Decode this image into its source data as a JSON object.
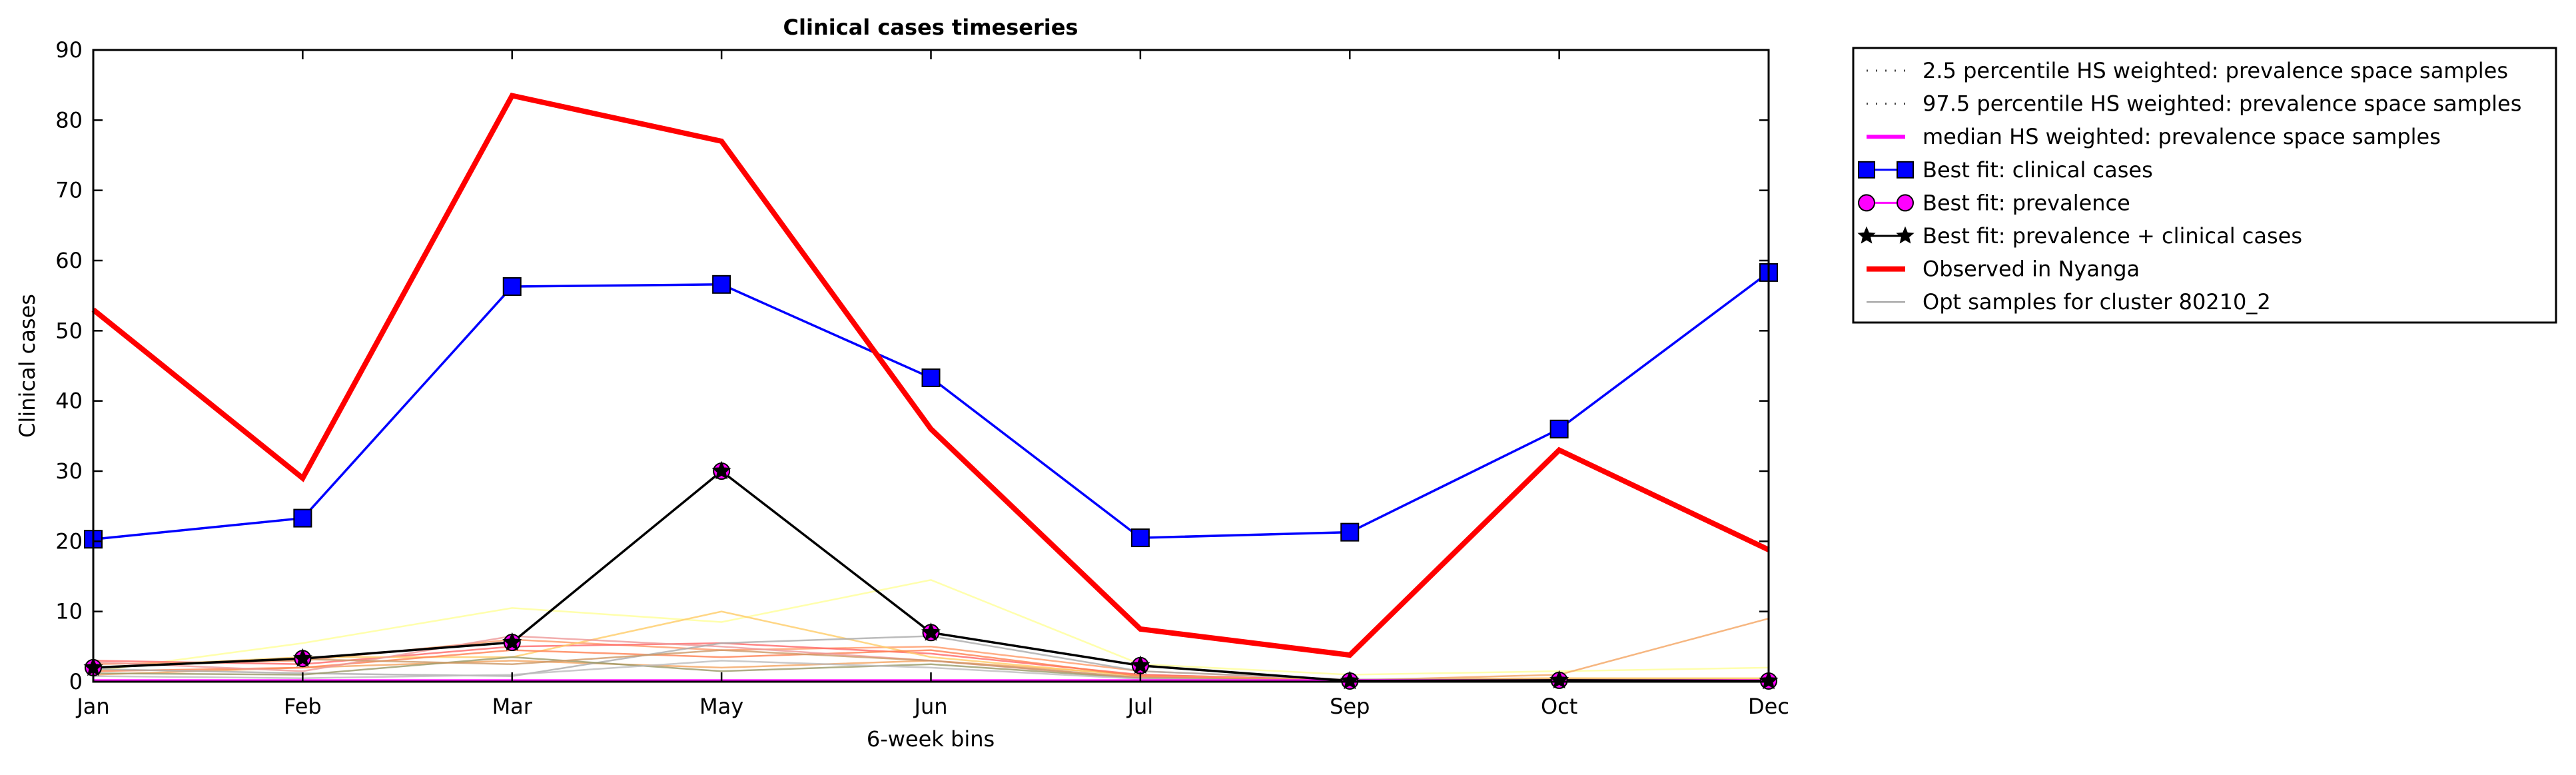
{
  "chart_data": {
    "type": "line",
    "title": "Clinical cases timeseries",
    "xlabel": "6-week bins",
    "ylabel": "Clinical cases",
    "xlim": [
      0,
      8
    ],
    "ylim": [
      0,
      90
    ],
    "grid": false,
    "legend_placement": "outside top-right",
    "x_ticks": [
      {
        "x": 0,
        "label": "Jan"
      },
      {
        "x": 1,
        "label": "Feb"
      },
      {
        "x": 2,
        "label": "Mar"
      },
      {
        "x": 3,
        "label": "May"
      },
      {
        "x": 4,
        "label": "Jun"
      },
      {
        "x": 5,
        "label": "Jul"
      },
      {
        "x": 6,
        "label": "Sep"
      },
      {
        "x": 7,
        "label": "Oct"
      },
      {
        "x": 8,
        "label": "Dec"
      }
    ],
    "y_ticks": [
      {
        "y": 0,
        "label": "0"
      },
      {
        "y": 10,
        "label": "10"
      },
      {
        "y": 20,
        "label": "20"
      },
      {
        "y": 30,
        "label": "30"
      },
      {
        "y": 40,
        "label": "40"
      },
      {
        "y": 50,
        "label": "50"
      },
      {
        "y": 60,
        "label": "60"
      },
      {
        "y": 70,
        "label": "70"
      },
      {
        "y": 80,
        "label": "80"
      },
      {
        "y": 90,
        "label": "90"
      }
    ],
    "background_samples": [
      {
        "color": "#ffff99",
        "values": [
          1.5,
          5.5,
          10.5,
          8.5,
          14.5,
          2.5,
          1.0,
          1.5,
          2.0
        ]
      },
      {
        "color": "#f4a460",
        "values": [
          1.0,
          2.0,
          3.0,
          2.0,
          3.0,
          1.0,
          0.2,
          1.0,
          9.0
        ]
      },
      {
        "color": "#ff9966",
        "values": [
          2.5,
          3.0,
          6.0,
          4.5,
          5.0,
          1.5,
          0.3,
          0.5,
          0.3
        ]
      },
      {
        "color": "#ff6666",
        "values": [
          3.0,
          2.5,
          5.0,
          5.5,
          4.0,
          1.0,
          0.2,
          0.3,
          0.2
        ]
      },
      {
        "color": "#ffcc66",
        "values": [
          2.0,
          3.5,
          3.5,
          10.0,
          3.5,
          0.8,
          0.2,
          0.5,
          0.5
        ]
      },
      {
        "color": "#ff7f50",
        "values": [
          1.5,
          2.0,
          4.5,
          3.5,
          4.5,
          0.8,
          0.1,
          0.2,
          0.2
        ]
      },
      {
        "color": "#ee9999",
        "values": [
          2.8,
          1.5,
          6.5,
          5.0,
          3.0,
          0.5,
          0.1,
          0.2,
          0.1
        ]
      },
      {
        "color": "#aaaaaa",
        "values": [
          1.8,
          1.2,
          0.8,
          5.5,
          6.5,
          1.5,
          0.3,
          0.3,
          0.2
        ]
      },
      {
        "color": "#999966",
        "values": [
          1.2,
          1.0,
          3.5,
          1.5,
          2.5,
          0.5,
          0.1,
          0.2,
          0.1
        ]
      },
      {
        "color": "#cc9966",
        "values": [
          2.0,
          3.2,
          2.5,
          4.5,
          3.0,
          0.6,
          0.2,
          0.3,
          0.2
        ]
      },
      {
        "color": "#bbbbbb",
        "values": [
          0.8,
          0.5,
          1.0,
          3.0,
          2.0,
          0.4,
          0.1,
          0.1,
          0.1
        ]
      }
    ],
    "series": [
      {
        "name": "2.5 percentile HS weighted: prevalence space samples",
        "style": "dotted",
        "color": "#444444",
        "values": [
          0.1,
          0.1,
          0.1,
          0.1,
          0.1,
          0.1,
          0.1,
          0.1,
          0.1
        ]
      },
      {
        "name": "97.5 percentile HS weighted: prevalence space samples",
        "style": "dotted",
        "color": "#444444",
        "values": [
          0.2,
          0.2,
          0.2,
          0.2,
          0.2,
          0.2,
          0.2,
          0.2,
          0.2
        ]
      },
      {
        "name": "median HS weighted: prevalence space samples",
        "style": "solid",
        "color": "#ff00ff",
        "values": [
          0.1,
          0.1,
          0.1,
          0.1,
          0.1,
          0.1,
          0.1,
          0.1,
          0.1
        ]
      },
      {
        "name": "Best fit: clinical cases",
        "style": "line-square",
        "color": "#0000ff",
        "values": [
          20.3,
          23.3,
          56.3,
          56.6,
          43.3,
          20.5,
          21.3,
          36.0,
          58.3
        ]
      },
      {
        "name": "Best fit: prevalence",
        "style": "line-circle",
        "color": "#ff00ff",
        "values": [
          2.0,
          3.3,
          5.6,
          30.0,
          7.0,
          2.3,
          0.1,
          0.2,
          0.1
        ]
      },
      {
        "name": "Best fit: prevalence + clinical cases",
        "style": "line-star",
        "color": "#000000",
        "values": [
          2.0,
          3.3,
          5.6,
          30.0,
          7.0,
          2.3,
          0.1,
          0.2,
          0.1
        ]
      },
      {
        "name": "Observed in Nyanga",
        "style": "thick",
        "color": "#ff0000",
        "values": [
          53.0,
          29.0,
          83.5,
          77.0,
          36.0,
          7.5,
          3.8,
          33.0,
          18.8
        ]
      },
      {
        "name": "Opt samples for cluster 80210_2",
        "style": "thin",
        "color": "#aaaaaa"
      }
    ]
  }
}
